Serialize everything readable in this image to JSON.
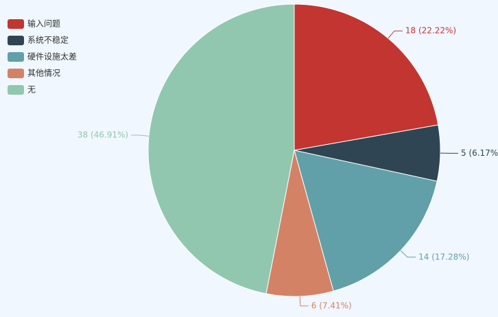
{
  "chart_data": {
    "type": "pie",
    "categories": [
      "输入问题",
      "系统不稳定",
      "硬件设施太差",
      "其他情况",
      "无"
    ],
    "values": [
      18,
      5,
      14,
      6,
      38
    ],
    "value_labels": [
      "18 (22.22%)",
      "5 (6.17%)",
      "14 (17.28%)",
      "6 (7.41%)",
      "38 (46.91%)"
    ],
    "colors": [
      "#c23531",
      "#2f4554",
      "#61a0a8",
      "#d48265",
      "#91c7ae"
    ],
    "legend": "top-left"
  }
}
